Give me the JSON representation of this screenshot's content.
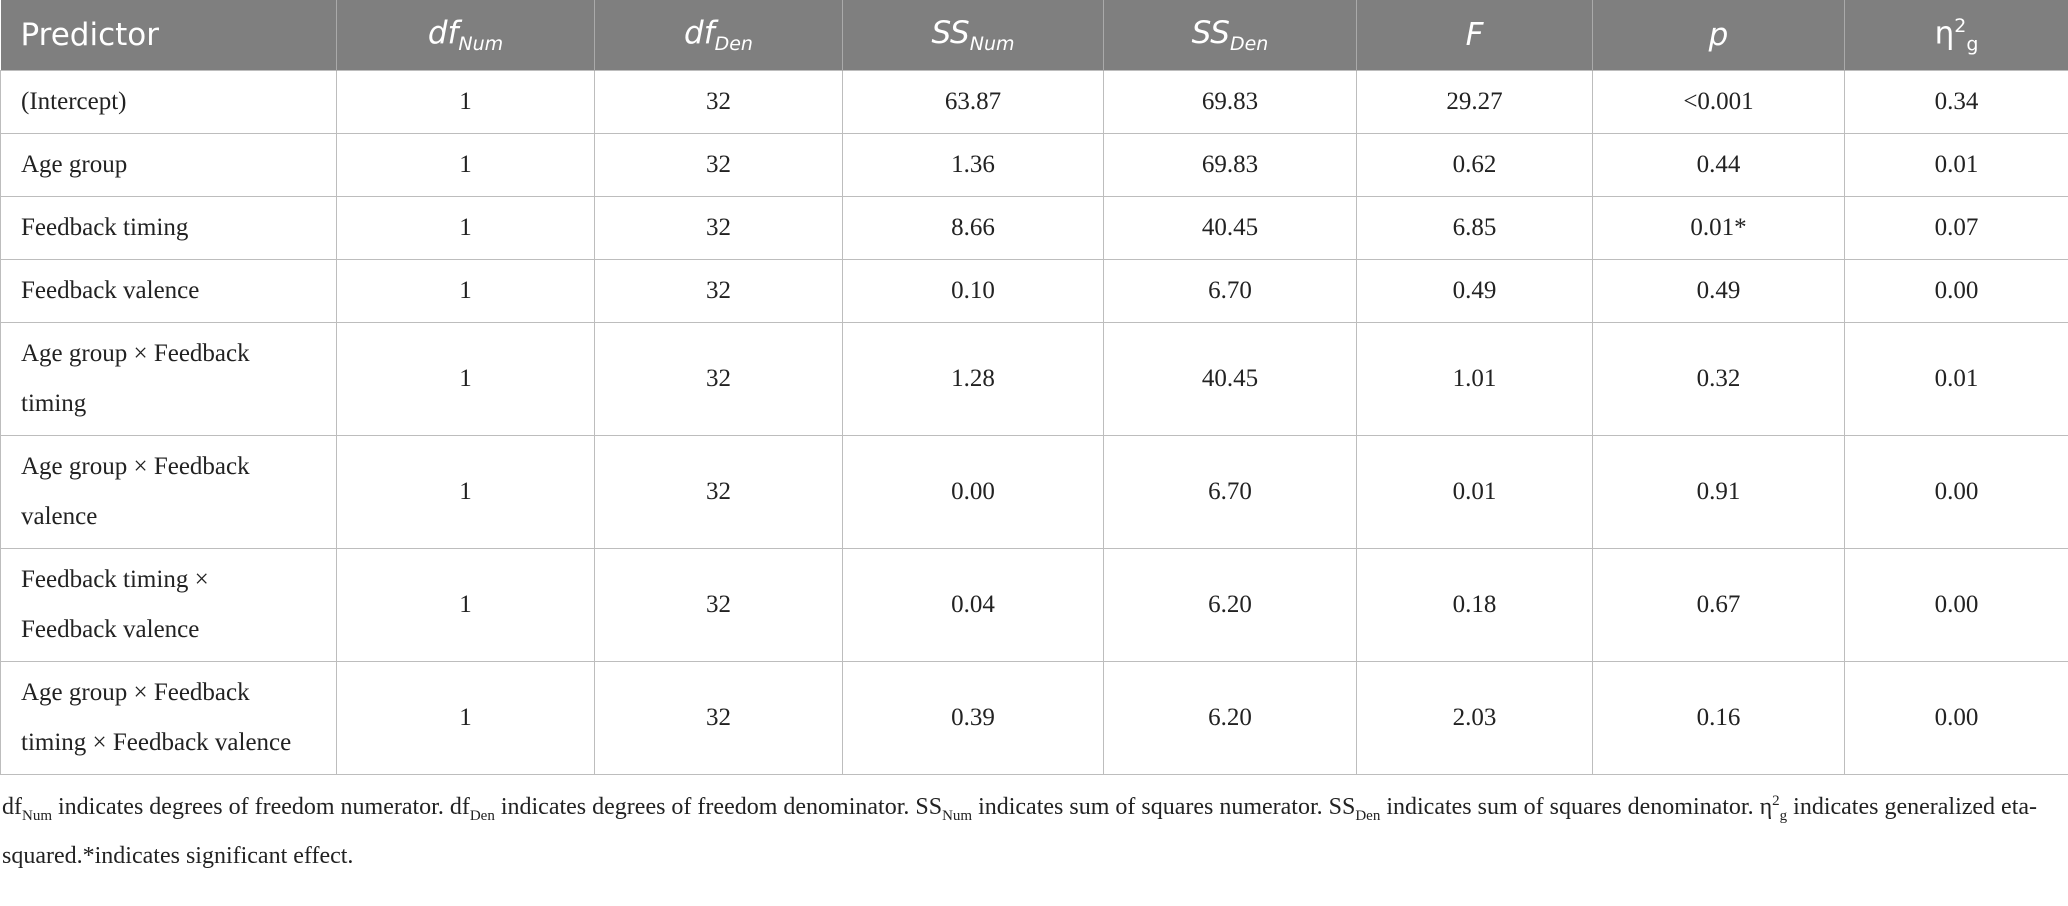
{
  "table": {
    "header": [
      [
        {
          "text": "Predictor"
        }
      ],
      [
        {
          "text": "df"
        },
        {
          "sub": "Num"
        }
      ],
      [
        {
          "text": "df"
        },
        {
          "sub": "Den"
        }
      ],
      [
        {
          "text": "SS"
        },
        {
          "sub": "Num"
        }
      ],
      [
        {
          "text": "SS"
        },
        {
          "sub": "Den"
        }
      ],
      [
        {
          "text": "F"
        }
      ],
      [
        {
          "text": "p"
        }
      ],
      [
        {
          "text": "η"
        },
        {
          "sup": "2"
        },
        {
          "sub": "g"
        }
      ]
    ],
    "rows": [
      [
        "(Intercept)",
        "1",
        "32",
        "63.87",
        "69.83",
        "29.27",
        "<0.001",
        "0.34"
      ],
      [
        "Age group",
        "1",
        "32",
        "1.36",
        "69.83",
        "0.62",
        "0.44",
        "0.01"
      ],
      [
        "Feedback timing",
        "1",
        "32",
        "8.66",
        "40.45",
        "6.85",
        "0.01*",
        "0.07"
      ],
      [
        "Feedback valence",
        "1",
        "32",
        "0.10",
        "6.70",
        "0.49",
        "0.49",
        "0.00"
      ],
      [
        "Age group × Feedback timing",
        "1",
        "32",
        "1.28",
        "40.45",
        "1.01",
        "0.32",
        "0.01"
      ],
      [
        "Age group × Feedback valence",
        "1",
        "32",
        "0.00",
        "6.70",
        "0.01",
        "0.91",
        "0.00"
      ],
      [
        "Feedback timing × Feedback valence",
        "1",
        "32",
        "0.04",
        "6.20",
        "0.18",
        "0.67",
        "0.00"
      ],
      [
        "Age group × Feedback timing × Feedback valence",
        "1",
        "32",
        "0.39",
        "6.20",
        "2.03",
        "0.16",
        "0.00"
      ]
    ]
  },
  "footnote": [
    {
      "text": "df"
    },
    {
      "sub": "Num"
    },
    {
      "text": " indicates degrees of freedom numerator. df"
    },
    {
      "sub": "Den"
    },
    {
      "text": " indicates degrees of freedom denominator. SS"
    },
    {
      "sub": "Num"
    },
    {
      "text": " indicates sum of squares numerator. SS"
    },
    {
      "sub": "Den"
    },
    {
      "text": " indicates sum of squares denominator. η"
    },
    {
      "sup": "2"
    },
    {
      "sub": "g"
    },
    {
      "text": " indicates generalized eta-squared.*indicates significant effect."
    }
  ]
}
